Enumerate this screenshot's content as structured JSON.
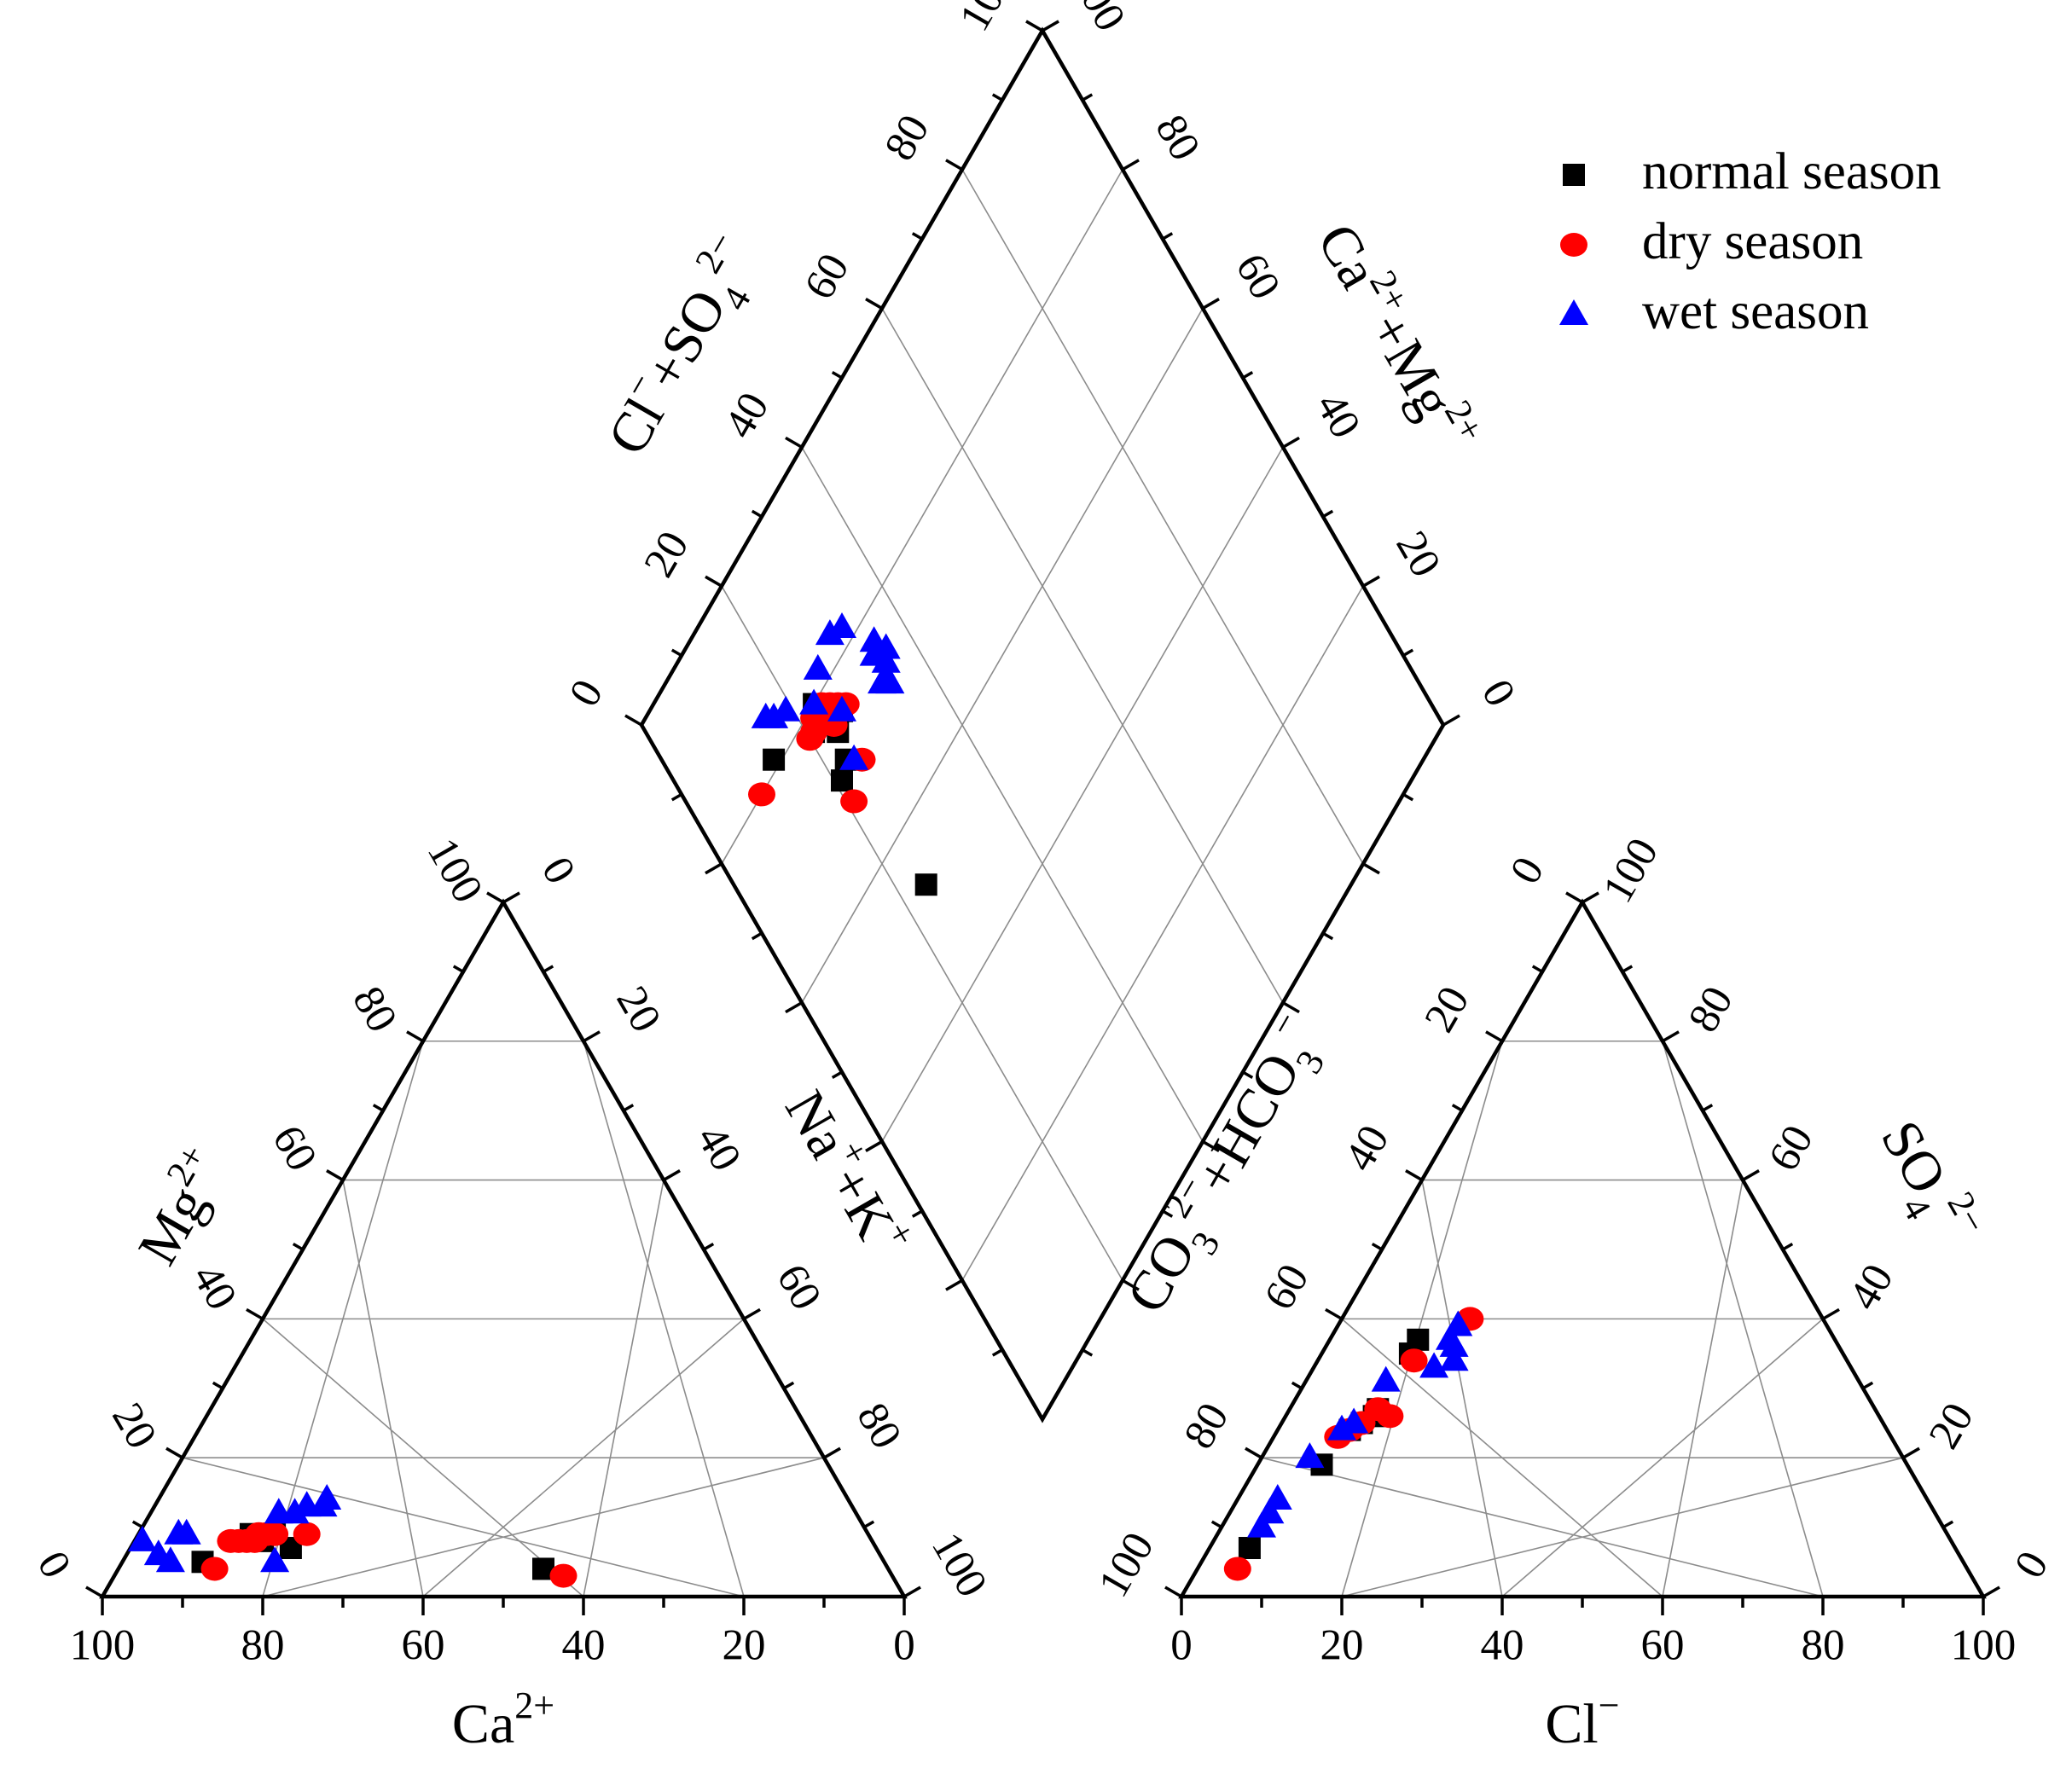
{
  "chart_data": {
    "type": "scatter",
    "subtype": "piper_diagram",
    "colors": {
      "normal": "#000000",
      "dry": "#ff0000",
      "wet": "#0000ff",
      "grid": "#8c8c8c",
      "frame": "#000000"
    },
    "legend": {
      "position": "top-right",
      "entries": [
        {
          "key": "normal",
          "label": "normal season",
          "marker": "square"
        },
        {
          "key": "dry",
          "label": "dry season",
          "marker": "circle"
        },
        {
          "key": "wet",
          "label": "wet season",
          "marker": "triangle"
        }
      ]
    },
    "ticks": {
      "values": [
        0,
        20,
        40,
        60,
        80,
        100
      ],
      "labels": [
        "0",
        "20",
        "40",
        "60",
        "80",
        "100"
      ]
    },
    "axis_titles": {
      "cation_ca": {
        "main": "Ca",
        "sup": "2+"
      },
      "cation_mg": {
        "main": "Mg",
        "sup": "2+"
      },
      "cation_nak": {
        "a": "Na",
        "a_sup": "+",
        "b": "+K",
        "b_sup": "+"
      },
      "anion_cl": {
        "main": "Cl",
        "sup": "−"
      },
      "anion_so4": {
        "main": "SO",
        "sub": "4",
        "sup": "2−"
      },
      "anion_co3hco3": {
        "a": "CO",
        "a_sub": "3",
        "a_sup": "2−",
        "b": "+HCO",
        "b_sub": "3",
        "b_sup": "−"
      },
      "diamond_clso4": {
        "a": "Cl",
        "a_sup": "−",
        "b": "+SO",
        "b_sub": "4",
        "b_sup": "2−"
      },
      "diamond_camg": {
        "a": "Ca",
        "a_sup": "2+",
        "b": "+Mg",
        "b_sup": "2+"
      }
    },
    "cation_triangle": {
      "components": [
        "Ca2+",
        "Mg2+",
        "Na++K+"
      ],
      "points": {
        "normal": [
          [
            85,
            5
          ],
          [
            78,
            8
          ],
          [
            77,
            9
          ],
          [
            76,
            8
          ],
          [
            75,
            9
          ],
          [
            74,
            9
          ],
          [
            73,
            7
          ],
          [
            43,
            4
          ]
        ],
        "dry": [
          [
            84,
            4
          ],
          [
            80,
            8
          ],
          [
            79,
            8
          ],
          [
            78,
            8
          ],
          [
            77,
            8
          ],
          [
            76,
            9
          ],
          [
            75,
            9
          ],
          [
            74,
            9
          ],
          [
            70,
            9
          ],
          [
            41,
            3
          ]
        ],
        "wet": [
          [
            91,
            8
          ],
          [
            90,
            6
          ],
          [
            89,
            5
          ],
          [
            86,
            9
          ],
          [
            85,
            9
          ],
          [
            76,
            5
          ],
          [
            72,
            12
          ],
          [
            70,
            12
          ],
          [
            68,
            13
          ],
          [
            66,
            13
          ],
          [
            65,
            14
          ]
        ]
      }
    },
    "anion_triangle": {
      "components": [
        "Cl−",
        "SO42−",
        "CO32−+HCO3−"
      ],
      "points": {
        "normal": [
          [
            5,
            7
          ],
          [
            8,
            19
          ],
          [
            9,
            24
          ],
          [
            10,
            25
          ],
          [
            11,
            26
          ],
          [
            11,
            27
          ],
          [
            11,
            35
          ],
          [
            11,
            37
          ]
        ],
        "dry": [
          [
            5,
            4
          ],
          [
            8,
            23
          ],
          [
            9,
            24
          ],
          [
            10,
            25
          ],
          [
            11,
            27
          ],
          [
            13,
            26
          ],
          [
            12,
            34
          ],
          [
            16,
            40
          ]
        ],
        "wet": [
          [
            5,
            10
          ],
          [
            5,
            12
          ],
          [
            5,
            14
          ],
          [
            6,
            20
          ],
          [
            8,
            24
          ],
          [
            9,
            25
          ],
          [
            10,
            31
          ],
          [
            15,
            33
          ],
          [
            17,
            34
          ],
          [
            16,
            36
          ],
          [
            15,
            37
          ],
          [
            15,
            39
          ]
        ]
      }
    },
    "diamond": {
      "axes": [
        "Cl−+SO42−",
        "Ca2++Mg2+"
      ],
      "points": {
        "normal": [
          [
            14,
            81
          ],
          [
            21,
            78
          ],
          [
            22,
            79
          ],
          [
            23,
            78
          ],
          [
            23,
            80
          ],
          [
            24,
            77
          ],
          [
            26,
            76
          ],
          [
            21,
            71
          ],
          [
            24,
            75
          ],
          [
            23,
            72
          ],
          [
            24,
            53
          ]
        ],
        "dry": [
          [
            10,
            80
          ],
          [
            20,
            78
          ],
          [
            21,
            78
          ],
          [
            22,
            79
          ],
          [
            23,
            78
          ],
          [
            24,
            79
          ],
          [
            25,
            78
          ],
          [
            26,
            77
          ],
          [
            24,
            76
          ],
          [
            27,
            76
          ],
          [
            25,
            70
          ],
          [
            21,
            68
          ]
        ],
        "wet": [
          [
            16,
            85
          ],
          [
            17,
            84
          ],
          [
            19,
            83
          ],
          [
            23,
            80
          ],
          [
            26,
            82
          ],
          [
            30,
            83
          ],
          [
            32,
            82
          ],
          [
            24,
            71
          ],
          [
            26,
            76
          ],
          [
            35,
            77
          ],
          [
            34,
            76
          ],
          [
            35,
            74
          ],
          [
            36,
            75
          ],
          [
            34,
            73
          ],
          [
            33,
            73
          ],
          [
            34,
            72
          ]
        ]
      }
    }
  }
}
